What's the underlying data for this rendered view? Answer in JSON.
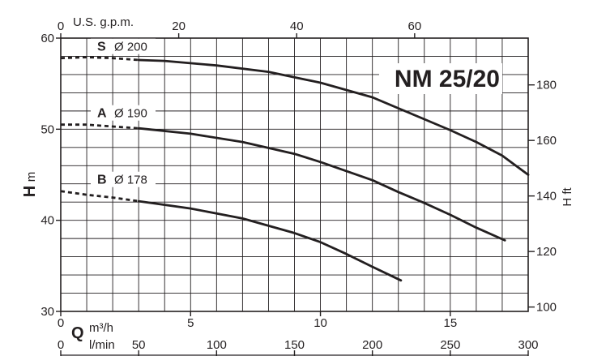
{
  "chart_data": {
    "type": "line",
    "title": "NM 25/20",
    "x_axis_bottom": {
      "label_symbol": "Q",
      "unit_primary": "m³/h",
      "range_m3h": [
        0,
        18
      ],
      "ticks_m3h": [
        0,
        5,
        10,
        15
      ],
      "unit_secondary": "l/min",
      "ticks_lmin": [
        0,
        50,
        100,
        150,
        200,
        250,
        300
      ]
    },
    "x_axis_top": {
      "unit": "U.S. g.p.m.",
      "ticks": [
        0,
        20,
        40,
        60
      ]
    },
    "y_axis_left": {
      "label_symbol": "H",
      "unit": "m",
      "range": [
        30,
        60
      ],
      "ticks": [
        30,
        40,
        50,
        60
      ]
    },
    "y_axis_right": {
      "label": "H ft",
      "ticks": [
        100,
        120,
        140,
        160,
        180
      ]
    },
    "grid": true,
    "series": [
      {
        "name": "S",
        "diameter_label": "Ø 200",
        "dashed_until": 3,
        "x": [
          0,
          1,
          2,
          3,
          4,
          6,
          8,
          10,
          12,
          13,
          14,
          15,
          16,
          17,
          18
        ],
        "y": [
          57.8,
          57.9,
          57.8,
          57.6,
          57.5,
          57.0,
          56.3,
          55.1,
          53.5,
          52.3,
          51.1,
          49.9,
          48.6,
          47.1,
          45.0
        ]
      },
      {
        "name": "A",
        "diameter_label": "Ø 190",
        "dashed_until": 3,
        "x": [
          0,
          1,
          2,
          3,
          5,
          7,
          9,
          10,
          12,
          13,
          14,
          15,
          16,
          17.1
        ],
        "y": [
          50.5,
          50.5,
          50.3,
          50.1,
          49.5,
          48.6,
          47.3,
          46.4,
          44.4,
          43.1,
          41.9,
          40.6,
          39.2,
          37.8
        ]
      },
      {
        "name": "B",
        "diameter_label": "Ø 178",
        "dashed_until": 3,
        "x": [
          0,
          1,
          2,
          3,
          5,
          7,
          9,
          10,
          11,
          12,
          13.1
        ],
        "y": [
          43.2,
          42.8,
          42.5,
          42.1,
          41.3,
          40.2,
          38.6,
          37.6,
          36.3,
          34.9,
          33.4
        ]
      }
    ]
  }
}
